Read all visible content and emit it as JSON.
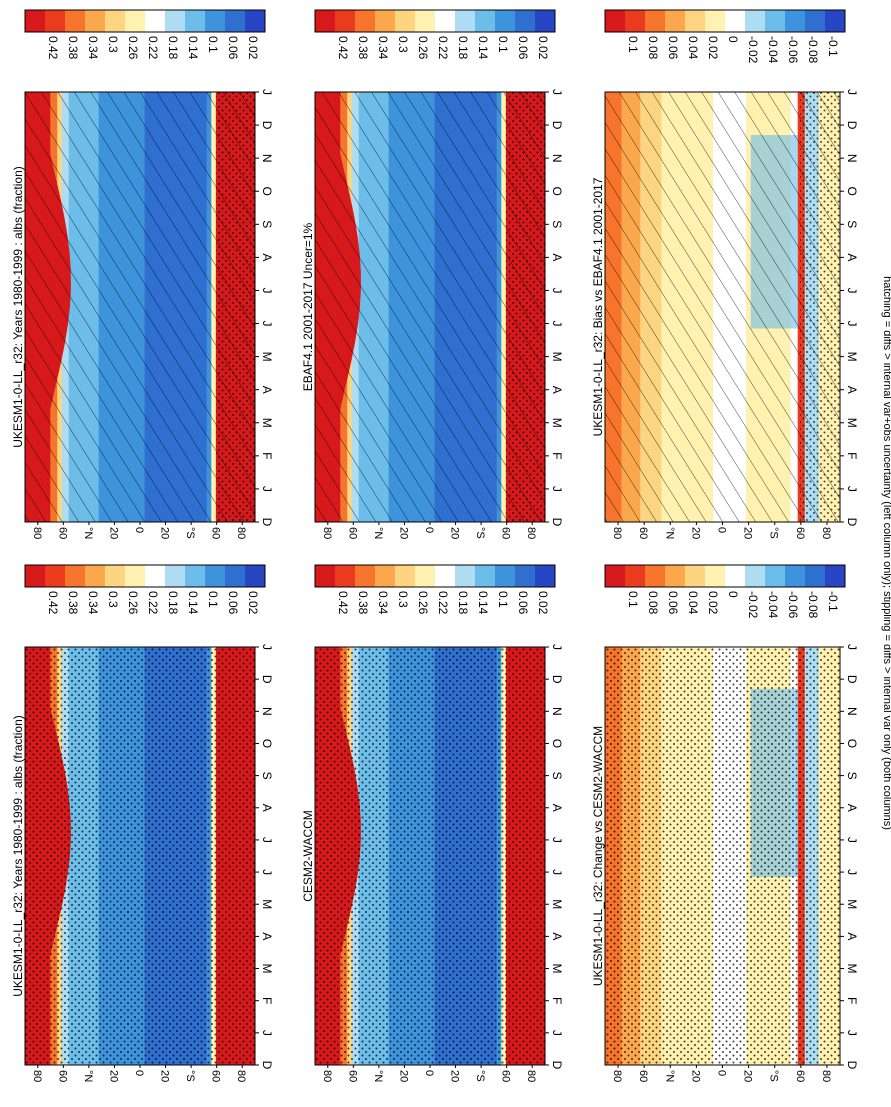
{
  "footnote": "hatching = diffs > internal var+obs uncertainty (left column only); stippling = diffs > internal var only (both columns)",
  "x_ticks": [
    "D",
    "J",
    "F",
    "M",
    "A",
    "M",
    "J",
    "J",
    "A",
    "S",
    "O",
    "N",
    "D",
    "J"
  ],
  "y_ticks": [
    "80",
    "60",
    "°N",
    "20",
    "0",
    "20",
    "°S",
    "60",
    "80"
  ],
  "chart_data": [
    {
      "type": "heatmap",
      "title": "UKESM1-0-LL_r32: Years 1980-1999 : albs (fraction)",
      "colorbar_labels": [
        "0.42",
        "0.38",
        "0.34",
        "0.3",
        "0.26",
        "0.22",
        "0.18",
        "0.14",
        "0.1",
        "0.06",
        "0.02"
      ],
      "colorscale": "absolute",
      "pattern": "hatch-stipple",
      "variable": "albs",
      "units": "fraction"
    },
    {
      "type": "heatmap",
      "title": "UKESM1-0-LL_r32: Years 1980-1999 : albs (fraction)",
      "colorbar_labels": [
        "0.42",
        "0.38",
        "0.34",
        "0.3",
        "0.26",
        "0.22",
        "0.18",
        "0.14",
        "0.1",
        "0.06",
        "0.02"
      ],
      "colorscale": "absolute",
      "pattern": "stipple"
    },
    {
      "type": "heatmap",
      "title": "EBAF4.1 2001-2017 Uncer=1%",
      "colorbar_labels": [
        "0.42",
        "0.38",
        "0.34",
        "0.3",
        "0.26",
        "0.22",
        "0.18",
        "0.14",
        "0.1",
        "0.06",
        "0.02"
      ],
      "colorscale": "absolute",
      "pattern": "hatch-stipple"
    },
    {
      "type": "heatmap",
      "title": "CESM2-WACCM",
      "colorbar_labels": [
        "0.42",
        "0.38",
        "0.34",
        "0.3",
        "0.26",
        "0.22",
        "0.18",
        "0.14",
        "0.1",
        "0.06",
        "0.02"
      ],
      "colorscale": "absolute",
      "pattern": "stipple"
    },
    {
      "type": "heatmap",
      "title": "UKESM1-0-LL_r32: Bias vs EBAF4.1 2001-2017",
      "colorbar_labels": [
        "0.1",
        "0.08",
        "0.06",
        "0.04",
        "0.02",
        "0",
        "-0.02",
        "-0.04",
        "-0.06",
        "-0.08",
        "-0.1"
      ],
      "colorscale": "diff",
      "pattern": "hatch-stipple"
    },
    {
      "type": "heatmap",
      "title": "UKESM1-0-LL_r32: Change vs CESM2-WACCM",
      "colorbar_labels": [
        "0.1",
        "0.08",
        "0.06",
        "0.04",
        "0.02",
        "0",
        "-0.02",
        "-0.04",
        "-0.06",
        "-0.08",
        "-0.1"
      ],
      "colorscale": "diff",
      "pattern": "stipple"
    }
  ],
  "colors": {
    "absolute": [
      "#d7191c",
      "#ea3b1f",
      "#f6742c",
      "#fba84d",
      "#fdd47f",
      "#fff1b0",
      "#ffffff",
      "#aedcf3",
      "#6cbde9",
      "#3e94dc",
      "#2f6fd0",
      "#2846c4"
    ],
    "diff": [
      "#d7191c",
      "#ea3b1f",
      "#f6742c",
      "#fba84d",
      "#fdd47f",
      "#fff1b0",
      "#ffffff",
      "#aedcf3",
      "#6cbde9",
      "#3e94dc",
      "#2f6fd0",
      "#2846c4"
    ]
  }
}
